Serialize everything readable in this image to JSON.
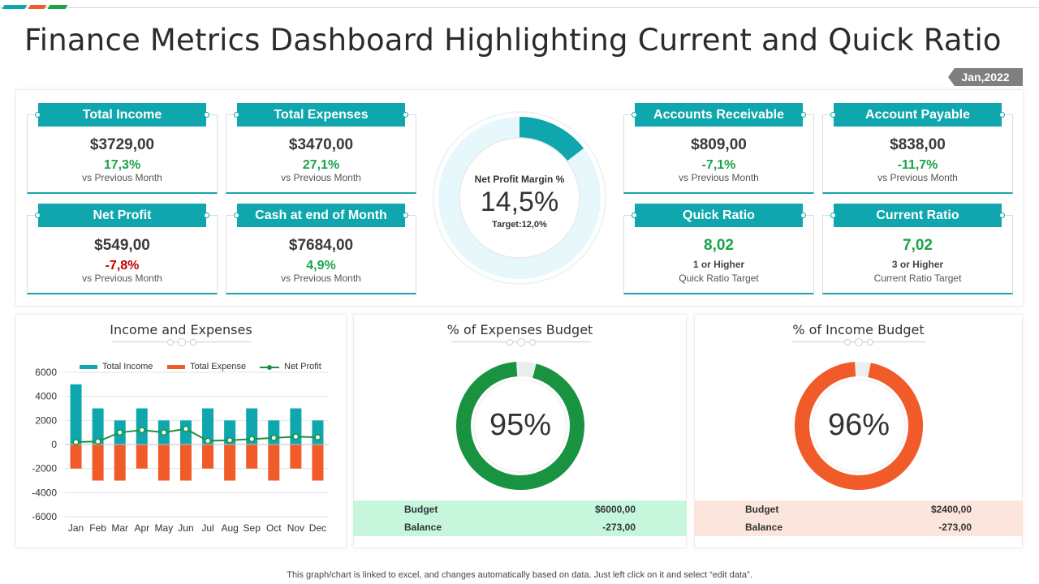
{
  "page": {
    "title": "Finance Metrics Dashboard Highlighting Current and Quick Ratio",
    "date": "Jan,2022",
    "footer": "This graph/chart is linked to excel, and changes automatically based on data. Just left click on it and select “edit data”."
  },
  "colors": {
    "teal": "#0fa7ad",
    "green": "#1ba34a",
    "red": "#c00000",
    "orange": "#f15a29",
    "dark_green": "#1a9341"
  },
  "kpis": {
    "total_income": {
      "label": "Total Income",
      "value": "$3729,00",
      "change": "17,3%",
      "sub": "vs Previous Month"
    },
    "total_expenses": {
      "label": "Total Expenses",
      "value": "$3470,00",
      "change": "27,1%",
      "sub": "vs Previous Month"
    },
    "net_profit": {
      "label": "Net Profit",
      "value": "$549,00",
      "change": "-7,8%",
      "sub": "vs Previous Month"
    },
    "cash_end": {
      "label": "Cash at end of Month",
      "value": "$7684,00",
      "change": "4,9%",
      "sub": "vs Previous Month"
    },
    "receivable": {
      "label": "Accounts Receivable",
      "value": "$809,00",
      "change": "-7,1%",
      "sub": "vs Previous Month"
    },
    "payable": {
      "label": "Account Payable",
      "value": "$838,00",
      "change": "-11,7%",
      "sub": "vs Previous Month"
    },
    "quick_ratio": {
      "label": "Quick Ratio",
      "value": "8,02",
      "target": "1 or Higher",
      "sub": "Quick Ratio Target"
    },
    "current_ratio": {
      "label": "Current Ratio",
      "value": "7,02",
      "target": "3 or Higher",
      "sub": "Current Ratio Target"
    }
  },
  "net_profit_margin": {
    "label": "Net Profit Margin %",
    "value": "14,5%",
    "target": "Target:12,0%",
    "fraction": 0.145
  },
  "chart_data": [
    {
      "type": "bar",
      "title": "Income and Expenses",
      "categories": [
        "Jan",
        "Feb",
        "Mar",
        "Apr",
        "May",
        "Jun",
        "Jul",
        "Aug",
        "Sep",
        "Oct",
        "Nov",
        "Dec"
      ],
      "series": [
        {
          "name": "Total Income",
          "values": [
            5000,
            3000,
            2000,
            3000,
            2000,
            2000,
            3000,
            2000,
            3000,
            2000,
            3000,
            2000
          ]
        },
        {
          "name": "Total Expense",
          "values": [
            -2000,
            -3000,
            -3000,
            -2000,
            -3000,
            -3000,
            -2000,
            -3000,
            -2000,
            -3000,
            -2000,
            -3000
          ]
        },
        {
          "name": "Net Profit",
          "values": [
            200,
            250,
            1000,
            1200,
            1000,
            1300,
            300,
            350,
            450,
            550,
            650,
            600
          ]
        }
      ],
      "ylim": [
        -6000,
        6000
      ],
      "yticks": [
        "6000",
        "4000",
        "2000",
        "0",
        "-2000",
        "-4000",
        "-6000"
      ],
      "ytick_values": [
        6000,
        4000,
        2000,
        0,
        -2000,
        -4000,
        -6000
      ],
      "legend": "top",
      "grid": true
    },
    {
      "type": "pie",
      "title": "% of Expenses Budget",
      "value": "95%",
      "fraction": 0.95,
      "budget_label": "Budget",
      "budget_value": "$6000,00",
      "balance_label": "Balance",
      "balance_value": "-273,00"
    },
    {
      "type": "pie",
      "title": "% of Income Budget",
      "value": "96%",
      "fraction": 0.96,
      "budget_label": "Budget",
      "budget_value": "$2400,00",
      "balance_label": "Balance",
      "balance_value": "-273,00"
    }
  ]
}
